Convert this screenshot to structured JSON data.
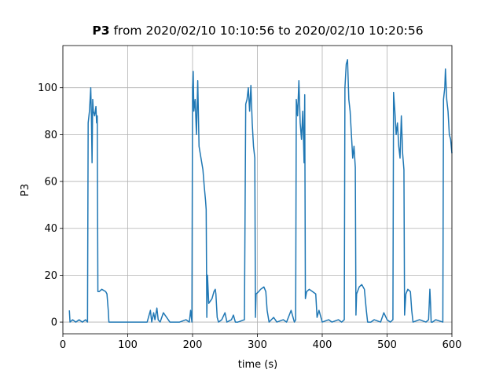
{
  "chart_data": {
    "type": "line",
    "title_bold": "P3",
    "title": "from 2020/02/10 10:10:56 to 2020/02/10 10:20:56",
    "x_label": "time (s)",
    "y_label": "P3",
    "xlim": [
      0,
      600
    ],
    "ylim": [
      -5,
      118
    ],
    "xticks": [
      0,
      100,
      200,
      300,
      400,
      500,
      600
    ],
    "yticks": [
      0,
      20,
      40,
      60,
      80,
      100
    ],
    "grid": true,
    "series": [
      {
        "color": "#1f77b4",
        "x": [
          10,
          11,
          15,
          20,
          25,
          30,
          35,
          38,
          39,
          41,
          43,
          44,
          45,
          46,
          47,
          49,
          51,
          52,
          53,
          54,
          56,
          60,
          66,
          68,
          70,
          71,
          80,
          100,
          120,
          130,
          135,
          137,
          140,
          142,
          145,
          147,
          150,
          155,
          160,
          165,
          180,
          190,
          195,
          197,
          199,
          200,
          201,
          202,
          204,
          206,
          208,
          210,
          213,
          216,
          218,
          220,
          221,
          222,
          223,
          225,
          230,
          233,
          235,
          236,
          238,
          240,
          245,
          250,
          253,
          260,
          263,
          266,
          270,
          280,
          282,
          284,
          286,
          288,
          290,
          292,
          294,
          296,
          297,
          298,
          302,
          305,
          310,
          313,
          315,
          318,
          325,
          330,
          340,
          345,
          352,
          357,
          359,
          360,
          362,
          364,
          366,
          368,
          370,
          372,
          373,
          374,
          376,
          380,
          385,
          390,
          392,
          395,
          400,
          410,
          415,
          425,
          430,
          434,
          435,
          437,
          439,
          441,
          443,
          445,
          447,
          449,
          451,
          452,
          453,
          457,
          461,
          465,
          468,
          470,
          475,
          480,
          490,
          495,
          500,
          505,
          509,
          510,
          512,
          514,
          516,
          518,
          520,
          522,
          524,
          526,
          527,
          529,
          532,
          536,
          538,
          540,
          550,
          560,
          564,
          566,
          567,
          568,
          570,
          575,
          586,
          587,
          589,
          590,
          592,
          594,
          596,
          598,
          600
        ],
        "values": [
          5,
          0,
          1,
          0,
          1,
          0,
          1,
          0,
          85,
          90,
          100,
          88,
          68,
          95,
          90,
          88,
          92,
          85,
          88,
          13,
          13,
          14,
          13,
          12,
          5,
          0,
          0,
          0,
          0,
          0,
          5,
          0,
          4,
          1,
          6,
          1,
          0,
          4,
          2,
          0,
          0,
          1,
          0,
          5,
          0,
          100,
          107,
          90,
          95,
          80,
          103,
          75,
          70,
          65,
          58,
          52,
          48,
          2,
          20,
          8,
          10,
          13,
          14,
          12,
          2,
          0,
          1,
          4,
          0,
          1,
          3,
          0,
          0,
          1,
          93,
          95,
          100,
          90,
          101,
          85,
          75,
          70,
          2,
          12,
          13,
          14,
          15,
          13,
          5,
          0,
          2,
          0,
          1,
          0,
          5,
          0,
          1,
          95,
          88,
          103,
          85,
          78,
          90,
          68,
          97,
          10,
          13,
          14,
          13,
          12,
          2,
          5,
          0,
          1,
          0,
          1,
          0,
          1,
          100,
          110,
          112,
          95,
          90,
          80,
          70,
          75,
          66,
          3,
          12,
          15,
          16,
          14,
          5,
          0,
          0,
          1,
          0,
          4,
          1,
          0,
          1,
          98,
          90,
          80,
          85,
          75,
          70,
          88,
          72,
          65,
          3,
          12,
          14,
          13,
          5,
          0,
          1,
          0,
          1,
          14,
          8,
          0,
          0,
          1,
          0,
          95,
          100,
          108,
          95,
          90,
          80,
          78,
          72
        ]
      }
    ]
  }
}
